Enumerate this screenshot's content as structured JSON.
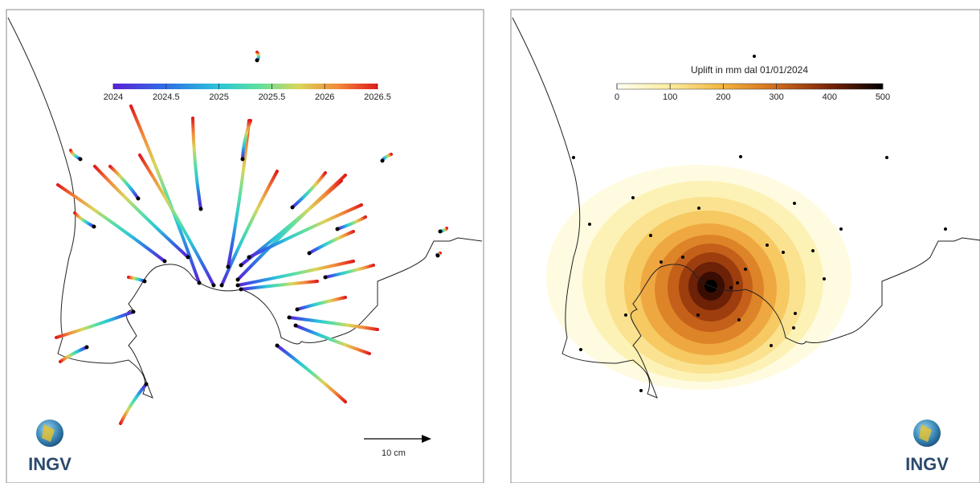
{
  "left_panel": {
    "colorbar": {
      "lim": [
        2024,
        2026.5
      ],
      "ticks": [
        2024,
        2024.5,
        2025,
        2025.5,
        2026,
        2026.5
      ]
    },
    "scale_bar": {
      "label": "10 cm"
    },
    "logo": "INGV"
  },
  "right_panel": {
    "colorbar": {
      "title": "Uplift in mm dal 01/01/2024",
      "lim": [
        0,
        500
      ],
      "ticks": [
        0,
        100,
        200,
        300,
        400,
        500
      ]
    },
    "logo": "INGV"
  }
}
